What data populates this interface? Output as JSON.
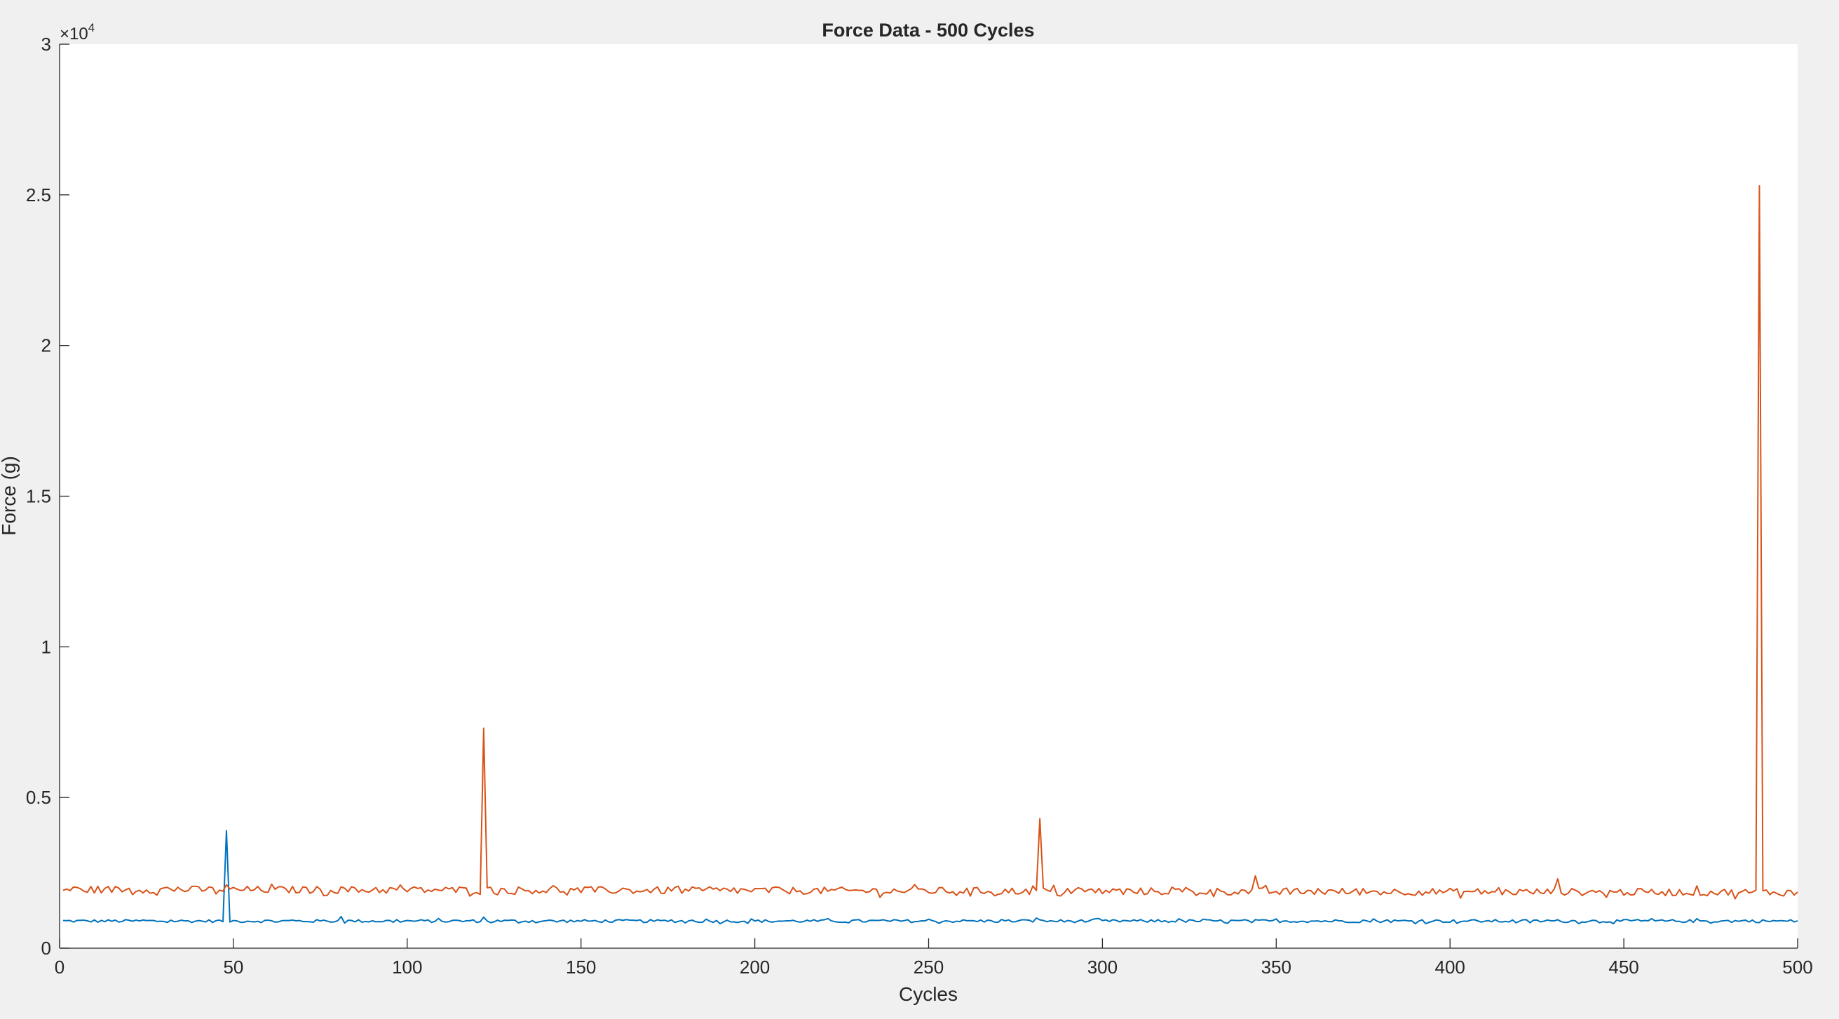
{
  "window": {
    "background": "#f0f0f0"
  },
  "chart_data": {
    "type": "line",
    "title": "Force Data - 500 Cycles",
    "xlabel": "Cycles",
    "ylabel": "Force (g)",
    "xlim": [
      0,
      500
    ],
    "ylim": [
      0,
      30000
    ],
    "x_ticks": [
      0,
      50,
      100,
      150,
      200,
      250,
      300,
      350,
      400,
      450,
      500
    ],
    "x_tick_labels": [
      "0",
      "50",
      "100",
      "150",
      "200",
      "250",
      "300",
      "350",
      "400",
      "450",
      "500"
    ],
    "y_ticks": [
      0,
      5000,
      10000,
      15000,
      20000,
      25000,
      30000
    ],
    "y_tick_labels": [
      "0",
      "0.5",
      "1",
      "1.5",
      "2",
      "2.5",
      "3"
    ],
    "y_exponent": {
      "base": "×10",
      "power": "4"
    },
    "grid": false,
    "legend": "none",
    "x_start": 1,
    "x_step": 1,
    "series": [
      {
        "color": "#0072bd",
        "baseline": 900,
        "variation": 50,
        "peaks": [
          {
            "x": 48,
            "y": 3900
          },
          {
            "x": 81,
            "y": 1050
          },
          {
            "x": 122,
            "y": 1030
          },
          {
            "x": 281,
            "y": 1000
          }
        ]
      },
      {
        "color": "#d95319",
        "baseline": 1950,
        "baseline_end": 1850,
        "variation": 120,
        "peaks": [
          {
            "x": 122,
            "y": 7300
          },
          {
            "x": 282,
            "y": 4300
          },
          {
            "x": 344,
            "y": 2400
          },
          {
            "x": 431,
            "y": 2300
          },
          {
            "x": 489,
            "y": 25300
          }
        ]
      }
    ]
  }
}
